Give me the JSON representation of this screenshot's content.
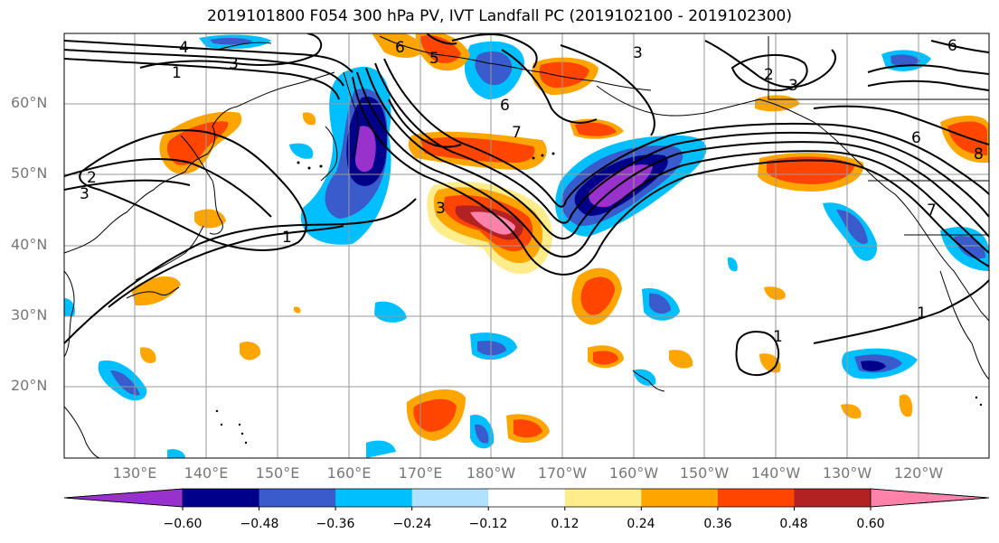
{
  "title": "2019101800 F054 300 hPa PV, IVT Landfall PC (2019102100 - 2019102300)",
  "map": {
    "lat_labels": [
      "60°N",
      "50°N",
      "40°N",
      "30°N",
      "20°N"
    ],
    "lon_labels": [
      "130°E",
      "140°E",
      "150°E",
      "160°E",
      "170°E",
      "180°W",
      "170°W",
      "160°W",
      "150°W",
      "140°W",
      "130°W",
      "120°W"
    ],
    "contour_labels": [
      "4",
      "3",
      "1",
      "6",
      "2",
      "3",
      "5",
      "6",
      "6",
      "1",
      "2",
      "3",
      "3",
      "1",
      "1",
      "7",
      "7",
      "3",
      "6",
      "8"
    ],
    "colors": {
      "land_outline": "#000000",
      "grid": "#999999"
    }
  },
  "colorbar": {
    "tick_labels": [
      "−0.60",
      "−0.48",
      "−0.36",
      "−0.24",
      "−0.12",
      "0.12",
      "0.24",
      "0.36",
      "0.48",
      "0.60"
    ],
    "colors": [
      "#9932cc",
      "#00008b",
      "#3a5bcc",
      "#00bfff",
      "#b0e2ff",
      "#ffffff",
      "#ffec8b",
      "#ffa500",
      "#ff4500",
      "#b22222",
      "#ff82ab"
    ]
  }
}
